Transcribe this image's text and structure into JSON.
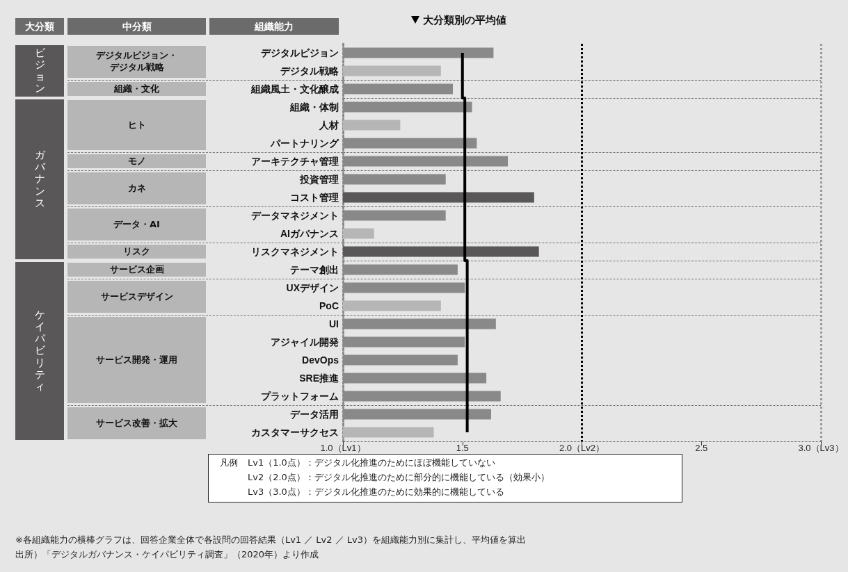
{
  "chart_data": {
    "type": "bar",
    "orientation": "horizontal",
    "categories": [
      "デジタルビジョン",
      "デジタル戦略",
      "組織風土・文化醸成",
      "組織・体制",
      "人材",
      "パートナリング",
      "アーキテクチャ管理",
      "投資管理",
      "コスト管理",
      "データマネジメント",
      "AIガバナンス",
      "リスクマネジメント",
      "テーマ創出",
      "UXデザイン",
      "PoC",
      "UI",
      "アジャイル開発",
      "DevOps",
      "SRE推進",
      "プラットフォーム",
      "データ活用",
      "カスタマーサクセス"
    ],
    "series": [
      {
        "values": [
          1.63,
          1.41,
          1.46,
          1.54,
          1.24,
          1.56,
          1.69,
          1.43,
          1.8,
          1.43,
          1.13,
          1.82,
          1.48,
          1.51,
          1.41,
          1.64,
          1.51,
          1.48,
          1.6,
          1.66,
          1.62,
          1.38
        ],
        "colors": [
          "#898989",
          "#b5b6b5",
          "#898989",
          "#898989",
          "#b5b6b5",
          "#898989",
          "#898989",
          "#898989",
          "#595758",
          "#898989",
          "#b5b6b5",
          "#595758",
          "#898989",
          "#898989",
          "#b5b6b5",
          "#898989",
          "#898989",
          "#898989",
          "#898989",
          "#898989",
          "#898989",
          "#b5b6b5"
        ]
      },
      {
        "type": "step",
        "name": "大分類別の平均値",
        "color": "#000000",
        "values": [
          1.5,
          1.5,
          1.5,
          1.51,
          1.51,
          1.51,
          1.51,
          1.51,
          1.51,
          1.51,
          1.51,
          1.51,
          1.52,
          1.52,
          1.52,
          1.52,
          1.52,
          1.52,
          1.52,
          1.52,
          1.52,
          1.52
        ]
      }
    ],
    "xlim": [
      1,
      3
    ],
    "xticks": [
      {
        "value": 1,
        "label": "1.0（Lv1）"
      },
      1.5,
      {
        "value": 2,
        "label": "2.0（Lv2）"
      },
      2.5,
      {
        "value": 3,
        "label": "3.0（Lv3）"
      }
    ],
    "ref_lines": [
      {
        "axis": "x",
        "value": 2,
        "color": "#000000",
        "line_style": "dotted"
      },
      {
        "axis": "x",
        "value": 3,
        "color": "#9a9a9a",
        "line_style": "dotted"
      }
    ],
    "grid": "y",
    "legend": "top",
    "marker": "none",
    "annotations": [
      "大分類",
      "中分類",
      "組織能力",
      "ビジョン",
      "ガバナンス",
      "ケイパビリティ",
      "デジタルビジョン・デジタル戦略",
      "組織・文化",
      "ヒト",
      "モノ",
      "カネ",
      "データ・AI",
      "リスク",
      "サービス企画",
      "サービスデザイン",
      "サービス開発・運用",
      "サービス改善・拡大",
      "凡例",
      "Lv1（1.0点）：デジタル化推進のためにほぼ機能していない",
      "Lv2（2.0点）：デジタル化推進のために部分的に機能している（効果小）",
      "Lv3（3.0点）：デジタル化推進のために効果的に機能している",
      "※各組織能力の横棒グラフは、回答企業全体で各設問の回答結果（Lv1 ／ Lv2 ／ Lv3）を組織能力別に集計し、平均値を算出",
      "出所）「デジタルガバナンス・ケイパビリティ調査」（2020年）より作成"
    ]
  }
}
